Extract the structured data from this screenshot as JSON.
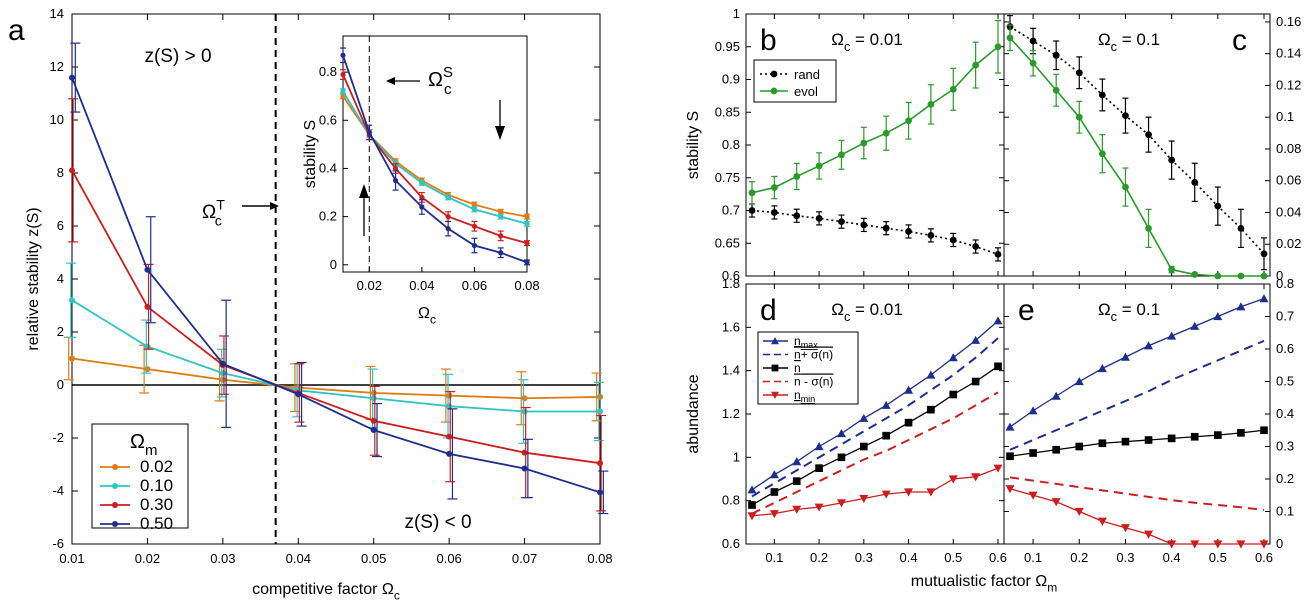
{
  "chart_data": [
    {
      "id": "a",
      "panel_letter": "a",
      "type": "line",
      "xlabel": "competitive factor Ω",
      "xlabel_sub": "c",
      "ylabel": "relative stability z(S)",
      "x": [
        0.01,
        0.02,
        0.03,
        0.04,
        0.05,
        0.06,
        0.07,
        0.08
      ],
      "xlim": [
        0.01,
        0.08
      ],
      "ylim": [
        -6,
        14
      ],
      "xticks": [
        "0.01",
        "0.02",
        "0.03",
        "0.04",
        "0.05",
        "0.06",
        "0.07",
        "0.08"
      ],
      "yticks": [
        "-6",
        "-4",
        "-2",
        "0",
        "2",
        "4",
        "6",
        "8",
        "10",
        "12",
        "14"
      ],
      "series": [
        {
          "name": "0.02",
          "color": "#e07b14",
          "values": [
            1.0,
            0.6,
            0.2,
            -0.1,
            -0.3,
            -0.4,
            -0.5,
            -0.45
          ],
          "err": [
            0.8,
            0.9,
            0.8,
            0.9,
            1.0,
            1.0,
            1.0,
            0.9
          ]
        },
        {
          "name": "0.10",
          "color": "#2ec4c4",
          "values": [
            3.2,
            1.45,
            0.45,
            -0.2,
            -0.5,
            -0.8,
            -1.0,
            -1.0
          ],
          "err": [
            1.4,
            1.0,
            0.9,
            1.0,
            1.1,
            1.2,
            1.2,
            1.1
          ]
        },
        {
          "name": "0.30",
          "color": "#cc1e1e",
          "values": [
            8.1,
            2.95,
            0.75,
            -0.3,
            -1.35,
            -1.95,
            -2.55,
            -2.95
          ],
          "err": [
            2.7,
            1.6,
            1.1,
            1.1,
            1.3,
            1.7,
            1.7,
            1.8
          ]
        },
        {
          "name": "0.50",
          "color": "#1f2d8f",
          "values": [
            11.6,
            4.35,
            0.8,
            -0.35,
            -1.7,
            -2.6,
            -3.15,
            -4.05
          ],
          "err": [
            1.3,
            2.0,
            2.4,
            1.2,
            1.0,
            1.7,
            1.1,
            0.8
          ]
        }
      ],
      "legend_title": "Ω",
      "legend_title_sub": "m",
      "annotations": {
        "upper": "z(S) > 0",
        "lower": "z(S) < 0",
        "omega_t": "Ω",
        "omega_t_sub": "c",
        "omega_t_sup": "T"
      },
      "threshold_x": 0.037,
      "inset": {
        "xlabel": "Ω",
        "xlabel_sub": "c",
        "ylabel": "stability S",
        "x": [
          0.01,
          0.02,
          0.03,
          0.04,
          0.05,
          0.06,
          0.07,
          0.08
        ],
        "xlim": [
          0.01,
          0.08
        ],
        "ylim": [
          -0.03,
          0.95
        ],
        "xticks": [
          "0.02",
          "0.04",
          "0.06",
          "0.08"
        ],
        "yticks": [
          "0",
          "0.2",
          "0.4",
          "0.6",
          "0.8"
        ],
        "annotation": "Ω",
        "annotation_sub": "c",
        "annotation_sup": "S",
        "threshold_x": 0.02,
        "series": [
          {
            "name": "0.02",
            "color": "#e07b14",
            "values": [
              0.7,
              0.54,
              0.43,
              0.35,
              0.29,
              0.25,
              0.22,
              0.2
            ],
            "err": [
              0.01,
              0.01,
              0.01,
              0.01,
              0.01,
              0.01,
              0.01,
              0.01
            ]
          },
          {
            "name": "0.10",
            "color": "#2ec4c4",
            "values": [
              0.72,
              0.54,
              0.42,
              0.34,
              0.28,
              0.23,
              0.2,
              0.17
            ],
            "err": [
              0.01,
              0.01,
              0.01,
              0.01,
              0.01,
              0.01,
              0.01,
              0.01
            ]
          },
          {
            "name": "0.30",
            "color": "#cc1e1e",
            "values": [
              0.79,
              0.54,
              0.4,
              0.28,
              0.2,
              0.16,
              0.12,
              0.09
            ],
            "err": [
              0.02,
              0.02,
              0.02,
              0.02,
              0.02,
              0.02,
              0.02,
              0.01
            ]
          },
          {
            "name": "0.50",
            "color": "#1f2d8f",
            "values": [
              0.87,
              0.55,
              0.35,
              0.24,
              0.15,
              0.08,
              0.05,
              0.01
            ],
            "err": [
              0.03,
              0.03,
              0.04,
              0.03,
              0.03,
              0.03,
              0.02,
              0.01
            ]
          }
        ]
      }
    },
    {
      "id": "b",
      "panel_letter": "b",
      "type": "line",
      "title": "Ω",
      "title_sub": "c",
      "title_suffix": " = 0.01",
      "ylabel": "stability S",
      "ylim": [
        0.6,
        1.0
      ],
      "yticks": [
        "0.6",
        "0.65",
        "0.7",
        "0.75",
        "0.8",
        "0.85",
        "0.9",
        "0.95",
        "1"
      ],
      "x": [
        0.05,
        0.1,
        0.15,
        0.2,
        0.25,
        0.3,
        0.35,
        0.4,
        0.45,
        0.5,
        0.55,
        0.6
      ],
      "series": [
        {
          "name": "rand",
          "color": "#000000",
          "style": "dotted",
          "values": [
            0.7,
            0.697,
            0.692,
            0.688,
            0.683,
            0.678,
            0.673,
            0.668,
            0.662,
            0.655,
            0.645,
            0.633
          ],
          "err": [
            0.01,
            0.01,
            0.01,
            0.01,
            0.01,
            0.01,
            0.01,
            0.01,
            0.01,
            0.01,
            0.01,
            0.01
          ]
        },
        {
          "name": "evol",
          "color": "#2a9a2a",
          "style": "solid",
          "values": [
            0.727,
            0.735,
            0.752,
            0.768,
            0.785,
            0.803,
            0.818,
            0.837,
            0.862,
            0.885,
            0.922,
            0.95
          ],
          "err": [
            0.017,
            0.017,
            0.02,
            0.02,
            0.022,
            0.024,
            0.026,
            0.028,
            0.03,
            0.032,
            0.035,
            0.04
          ]
        }
      ]
    },
    {
      "id": "c",
      "panel_letter": "c",
      "type": "line",
      "title": "Ω",
      "title_sub": "c",
      "title_suffix": " = 0.1",
      "ylim": [
        0,
        0.165
      ],
      "yticks": [
        "0",
        "0.02",
        "0.04",
        "0.06",
        "0.08",
        "0.1",
        "0.12",
        "0.14",
        "0.16"
      ],
      "x": [
        0.05,
        0.1,
        0.15,
        0.2,
        0.25,
        0.3,
        0.35,
        0.4,
        0.45,
        0.5,
        0.55,
        0.6
      ],
      "series": [
        {
          "name": "rand",
          "color": "#000000",
          "style": "dotted",
          "values": [
            0.157,
            0.148,
            0.139,
            0.128,
            0.114,
            0.101,
            0.089,
            0.073,
            0.059,
            0.044,
            0.03,
            0.014
          ],
          "err": [
            0.007,
            0.008,
            0.009,
            0.01,
            0.01,
            0.011,
            0.011,
            0.012,
            0.012,
            0.012,
            0.012,
            0.01
          ]
        },
        {
          "name": "evol",
          "color": "#2a9a2a",
          "style": "solid",
          "values": [
            0.15,
            0.134,
            0.117,
            0.1,
            0.077,
            0.056,
            0.03,
            0.004,
            0.001,
            0.0,
            0.0,
            0.0
          ],
          "err": [
            0.008,
            0.008,
            0.01,
            0.01,
            0.012,
            0.012,
            0.012,
            0.002,
            0.0,
            0.0,
            0.0,
            0.0
          ]
        }
      ]
    },
    {
      "id": "d",
      "panel_letter": "d",
      "type": "line",
      "title": "Ω",
      "title_sub": "c",
      "title_suffix": " = 0.01",
      "ylabel": "abundance",
      "ylim": [
        0.6,
        1.8
      ],
      "yticks": [
        "0.6",
        "0.8",
        "1",
        "1.2",
        "1.4",
        "1.6",
        "1.8"
      ],
      "xticks": [
        "0.1",
        "0.2",
        "0.3",
        "0.4",
        "0.5",
        "0.6"
      ],
      "x": [
        0.05,
        0.1,
        0.15,
        0.2,
        0.25,
        0.3,
        0.35,
        0.4,
        0.45,
        0.5,
        0.55,
        0.6
      ],
      "series": [
        {
          "name": "n_max",
          "color": "#1f2d8f",
          "values": [
            0.85,
            0.92,
            0.98,
            1.05,
            1.11,
            1.18,
            1.24,
            1.31,
            1.38,
            1.46,
            1.54,
            1.63
          ]
        },
        {
          "name": "n+σ(n)",
          "color": "#1f2d8f",
          "values": [
            0.82,
            0.88,
            0.94,
            1.0,
            1.06,
            1.12,
            1.18,
            1.24,
            1.31,
            1.38,
            1.46,
            1.55
          ]
        },
        {
          "name": "n",
          "color": "#000000",
          "values": [
            0.78,
            0.84,
            0.89,
            0.95,
            1.0,
            1.05,
            1.1,
            1.16,
            1.22,
            1.29,
            1.35,
            1.42
          ]
        },
        {
          "name": "n-σ(n)",
          "color": "#cc1e1e",
          "values": [
            0.74,
            0.79,
            0.84,
            0.89,
            0.94,
            0.99,
            1.03,
            1.08,
            1.13,
            1.18,
            1.24,
            1.3
          ]
        },
        {
          "name": "n_min",
          "color": "#cc1e1e",
          "values": [
            0.73,
            0.74,
            0.76,
            0.77,
            0.79,
            0.81,
            0.83,
            0.84,
            0.84,
            0.9,
            0.91,
            0.95
          ]
        }
      ],
      "legend": [
        "n",
        "n",
        "n",
        "n",
        "n"
      ],
      "legend_full": [
        {
          "main": "n",
          "sub": "max"
        },
        {
          "main": "n",
          "suffix": "+ σ(n)"
        },
        {
          "main": "n"
        },
        {
          "main": "n",
          "suffix": " - σ(n)"
        },
        {
          "main": "n",
          "sub": "min"
        }
      ]
    },
    {
      "id": "e",
      "panel_letter": "e",
      "type": "line",
      "title": "Ω",
      "title_sub": "c",
      "title_suffix": " = 0.1",
      "ylim": [
        0,
        0.8
      ],
      "yticks": [
        "0",
        "0.1",
        "0.2",
        "0.3",
        "0.4",
        "0.5",
        "0.6",
        "0.7",
        "0.8"
      ],
      "xticks": [
        "0.1",
        "0.2",
        "0.3",
        "0.4",
        "0.5",
        "0.6"
      ],
      "x": [
        0.05,
        0.1,
        0.15,
        0.2,
        0.25,
        0.3,
        0.35,
        0.4,
        0.45,
        0.5,
        0.55,
        0.6
      ],
      "series": [
        {
          "name": "n_max",
          "color": "#1f2d8f",
          "values": [
            0.36,
            0.41,
            0.455,
            0.5,
            0.54,
            0.575,
            0.61,
            0.64,
            0.67,
            0.7,
            0.73,
            0.755
          ]
        },
        {
          "name": "n+σ(n)",
          "color": "#1f2d8f",
          "values": [
            0.29,
            0.32,
            0.35,
            0.38,
            0.41,
            0.44,
            0.47,
            0.505,
            0.535,
            0.565,
            0.595,
            0.625
          ]
        },
        {
          "name": "n",
          "color": "#000000",
          "values": [
            0.27,
            0.28,
            0.29,
            0.3,
            0.31,
            0.315,
            0.32,
            0.325,
            0.33,
            0.335,
            0.342,
            0.35
          ]
        },
        {
          "name": "n-σ(n)",
          "color": "#cc1e1e",
          "values": [
            0.205,
            0.195,
            0.185,
            0.175,
            0.165,
            0.155,
            0.145,
            0.135,
            0.127,
            0.12,
            0.113,
            0.105
          ]
        },
        {
          "name": "n_min",
          "color": "#cc1e1e",
          "values": [
            0.17,
            0.15,
            0.13,
            0.1,
            0.07,
            0.05,
            0.03,
            0.0,
            0.0,
            0.0,
            0.0,
            0.0
          ]
        }
      ]
    }
  ],
  "shared": {
    "bc_xlabel": "mutualistic factor Ω",
    "bc_xlabel_sub": "m",
    "legend_bc": [
      "rand",
      "evol"
    ]
  }
}
